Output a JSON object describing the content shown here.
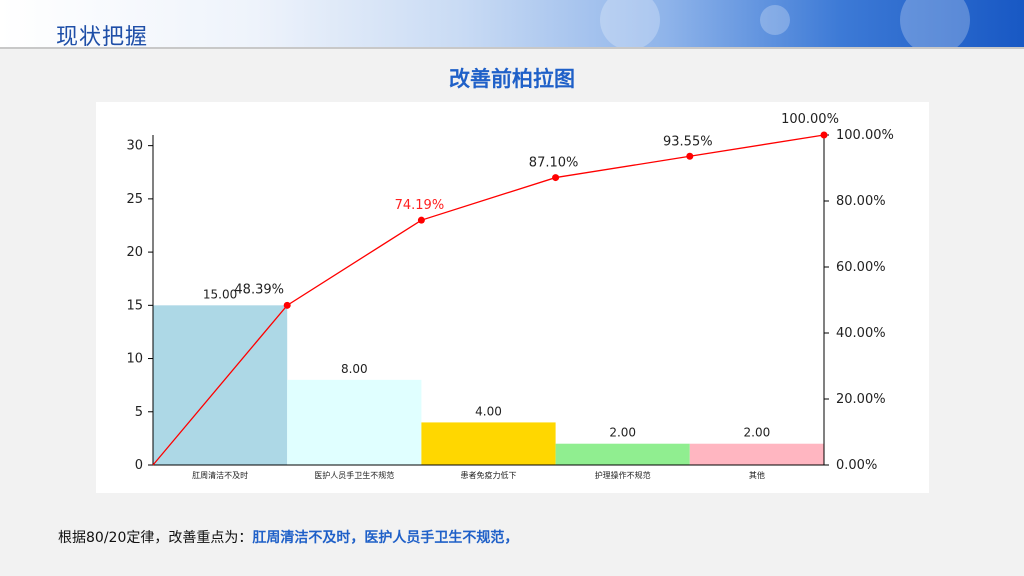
{
  "header": {
    "title": "现状把握"
  },
  "chart_data": {
    "type": "bar",
    "title": "改善前柏拉图",
    "categories": [
      "肛周清洁不及时",
      "医护人员手卫生不规范",
      "患者免疫力低下",
      "护理操作不规范",
      "其他"
    ],
    "values": [
      15,
      8,
      4,
      2,
      2
    ],
    "value_labels": [
      "15.00",
      "8.00",
      "4.00",
      "2.00",
      "2.00"
    ],
    "bar_colors": [
      "#add8e6",
      "#e0ffff",
      "#ffd700",
      "#90ee90",
      "#ffb6c1"
    ],
    "cumulative": [
      0,
      48.39,
      74.19,
      87.1,
      93.55,
      100.0
    ],
    "cumulative_labels": [
      "48.39%",
      "74.19%",
      "87.10%",
      "93.55%",
      "100.00%"
    ],
    "highlight_label_index": 1,
    "line_color": "#ff0000",
    "ylim": [
      0,
      31
    ],
    "y_ticks": [
      0,
      5,
      10,
      15,
      20,
      25,
      30
    ],
    "y2lim": [
      0,
      100
    ],
    "y2_ticks": [
      "0.00%",
      "20.00%",
      "40.00%",
      "60.00%",
      "80.00%",
      "100.00%"
    ],
    "grid": false
  },
  "note": {
    "prefix": "根据80/20定律，改善重点为：",
    "highlight": "肛周清洁不及时，医护人员手卫生不规范，"
  }
}
